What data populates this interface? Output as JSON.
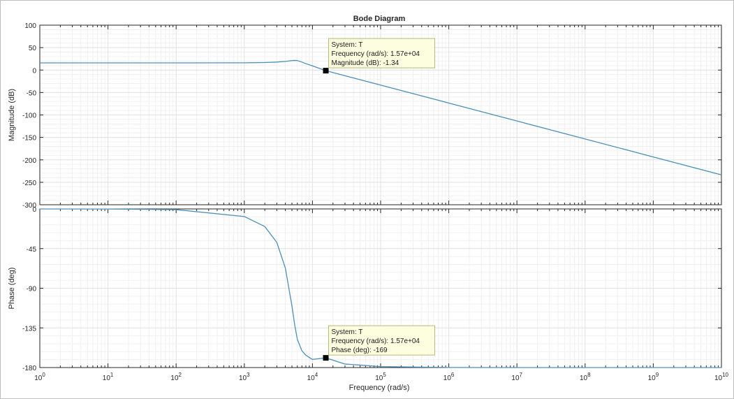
{
  "colors": {
    "line": "#4a90b8",
    "axes_bg": "#ffffff",
    "grid_major": "#e2e2e2",
    "grid_minor": "#f0f0f0",
    "datatip_bg": "#fdfde0",
    "datatip_border": "#b8b87a",
    "marker": "#000000",
    "text": "#262626"
  },
  "chart_data": {
    "type": "line",
    "title": "Bode Diagram",
    "xlabel": "Frequency  (rad/s)",
    "xscale": "log",
    "xlim": [
      1,
      10000000000
    ],
    "xticks": [
      {
        "value": 1,
        "base": "10",
        "exp": "0"
      },
      {
        "value": 10,
        "base": "10",
        "exp": "1"
      },
      {
        "value": 100,
        "base": "10",
        "exp": "2"
      },
      {
        "value": 1000,
        "base": "10",
        "exp": "3"
      },
      {
        "value": 10000,
        "base": "10",
        "exp": "4"
      },
      {
        "value": 100000,
        "base": "10",
        "exp": "5"
      },
      {
        "value": 1000000,
        "base": "10",
        "exp": "6"
      },
      {
        "value": 10000000,
        "base": "10",
        "exp": "7"
      },
      {
        "value": 100000000,
        "base": "10",
        "exp": "8"
      },
      {
        "value": 1000000000,
        "base": "10",
        "exp": "9"
      },
      {
        "value": 10000000000,
        "base": "10",
        "exp": "10"
      }
    ],
    "grid": true,
    "panels": [
      {
        "ylabel": "Magnitude (dB)",
        "ylim": [
          -300,
          100
        ],
        "yticks": [
          100,
          50,
          0,
          -50,
          -100,
          -150,
          -200,
          -250,
          -300
        ],
        "series": {
          "x": [
            1,
            10,
            100,
            1000,
            2000,
            3000,
            4000,
            5000,
            5500,
            6000,
            7000,
            8000,
            10000,
            15700,
            30000,
            100000,
            1000000,
            10000000,
            100000000,
            1000000000,
            10000000000
          ],
          "y": [
            15.9,
            15.9,
            15.9,
            16.2,
            16.8,
            17.8,
            19.3,
            21.0,
            21.5,
            21.1,
            17.8,
            14.3,
            9.3,
            -1.34,
            -12.6,
            -33.5,
            -73.5,
            -113.5,
            -153.5,
            -193.5,
            -233.5
          ]
        },
        "datatip": {
          "x": 15700,
          "y": -1.34,
          "lines": [
            "System: T",
            "Frequency (rad/s): 1.57e+04",
            "Magnitude (dB): -1.34"
          ]
        }
      },
      {
        "ylabel": "Phase (deg)",
        "ylim": [
          -180,
          0
        ],
        "yticks": [
          0,
          -45,
          -90,
          -135,
          -180
        ],
        "series": {
          "x": [
            1,
            10,
            100,
            1000,
            2000,
            3000,
            4000,
            5000,
            5500,
            6000,
            7000,
            8000,
            10000,
            15700,
            30000,
            100000,
            1000000,
            10000000,
            100000000,
            1000000000,
            10000000000
          ],
          "y": [
            -0.01,
            -0.1,
            -0.8,
            -8.6,
            -20.0,
            -38.0,
            -67.0,
            -110.0,
            -132.0,
            -148.0,
            -161.0,
            -166.0,
            -170.8,
            -169.0,
            -176.0,
            -178.9,
            -179.9,
            -180.0,
            -180.0,
            -180.0,
            -180.0
          ]
        },
        "datatip": {
          "x": 15700,
          "y": -169,
          "lines": [
            "System: T",
            "Frequency (rad/s): 1.57e+04",
            "Phase (deg): -169"
          ]
        }
      }
    ]
  }
}
